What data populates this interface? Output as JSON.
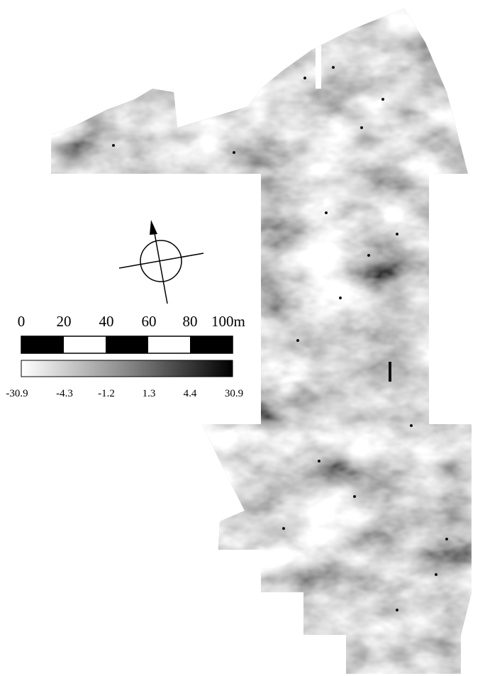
{
  "scale_bar": {
    "labels": [
      "0",
      "20",
      "40",
      "60",
      "80",
      "100m"
    ]
  },
  "color_scale": {
    "labels": [
      "-30.9",
      "-4.3",
      "-1.2",
      "1.3",
      "4.4",
      "30.9"
    ]
  }
}
